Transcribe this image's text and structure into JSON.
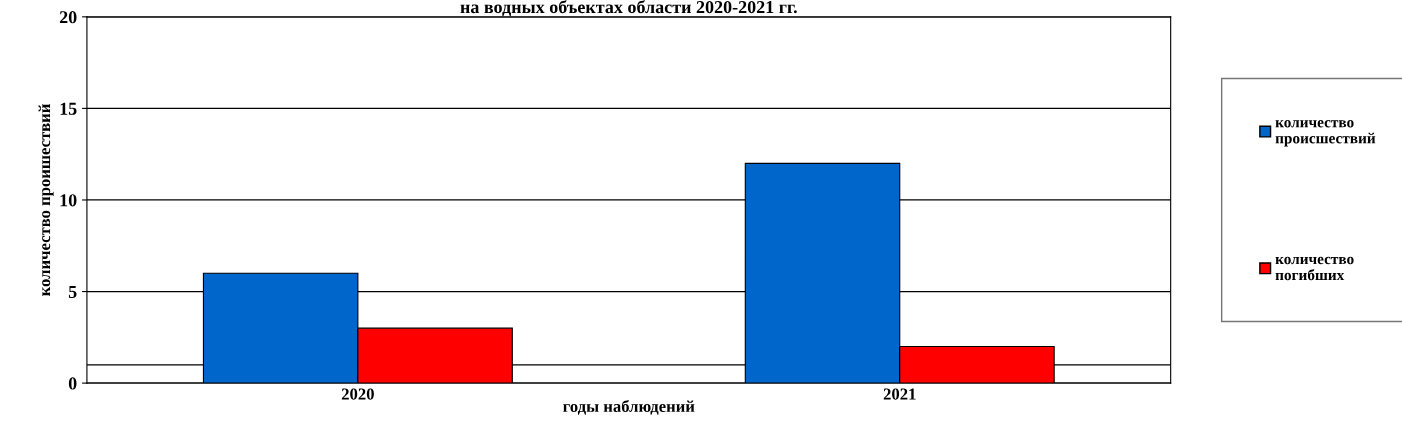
{
  "chart_data": {
    "type": "bar",
    "title": "на водных объектах области 2020-2021 гг.",
    "xlabel": "годы наблюдений",
    "ylabel": "количество проишествий",
    "categories": [
      "2020",
      "2021"
    ],
    "series": [
      {
        "name": "количество\nпроисшествий",
        "color": "#0066cc",
        "values": [
          6,
          12
        ]
      },
      {
        "name": "количество\nпогибших",
        "color": "#ff0000",
        "values": [
          3,
          2
        ]
      }
    ],
    "ylim": [
      0,
      20
    ],
    "yticks": [
      0,
      5,
      10,
      15,
      20
    ],
    "grid": "y",
    "legend": "right",
    "ref_lines": [
      {
        "axis": "y",
        "value": 1,
        "color": "#000000"
      }
    ]
  }
}
